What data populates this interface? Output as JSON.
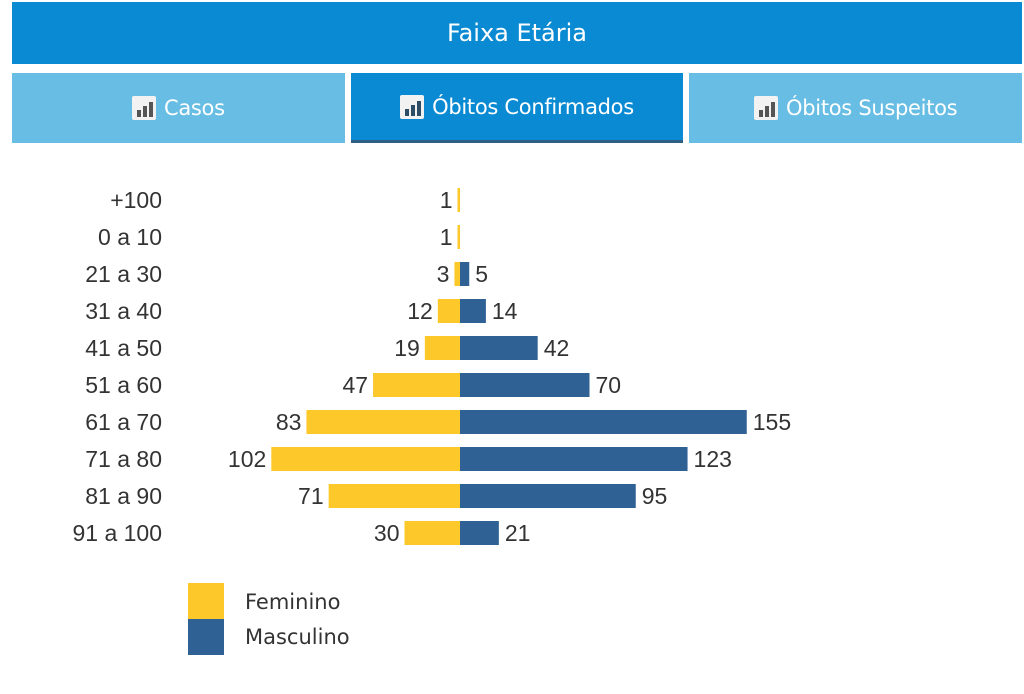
{
  "header": {
    "title": "Faixa Etária"
  },
  "tabs": [
    {
      "label": "Casos",
      "icon": "bar-chart-icon",
      "active": false
    },
    {
      "label": "Óbitos Confirmados",
      "icon": "bar-chart-icon",
      "active": true
    },
    {
      "label": "Óbitos Suspeitos",
      "icon": "bar-chart-icon",
      "active": false
    }
  ],
  "colors": {
    "header": "#0a8ad2",
    "tab": "#67bde3",
    "feminino": "#fcc82a",
    "masculino": "#2f6195"
  },
  "chart_data": {
    "type": "bar",
    "orientation": "horizontal-diverging",
    "categories": [
      "+100",
      "0 a 10",
      "21 a 30",
      "31 a 40",
      "41 a 50",
      "51 a 60",
      "61 a 70",
      "71 a 80",
      "81 a 90",
      "91 a 100"
    ],
    "series": [
      {
        "name": "Feminino",
        "values": [
          1,
          1,
          3,
          12,
          19,
          47,
          83,
          102,
          71,
          30
        ]
      },
      {
        "name": "Masculino",
        "values": [
          null,
          null,
          5,
          14,
          42,
          70,
          155,
          123,
          95,
          21
        ]
      }
    ],
    "legend_position": "bottom-left",
    "grid": false
  }
}
